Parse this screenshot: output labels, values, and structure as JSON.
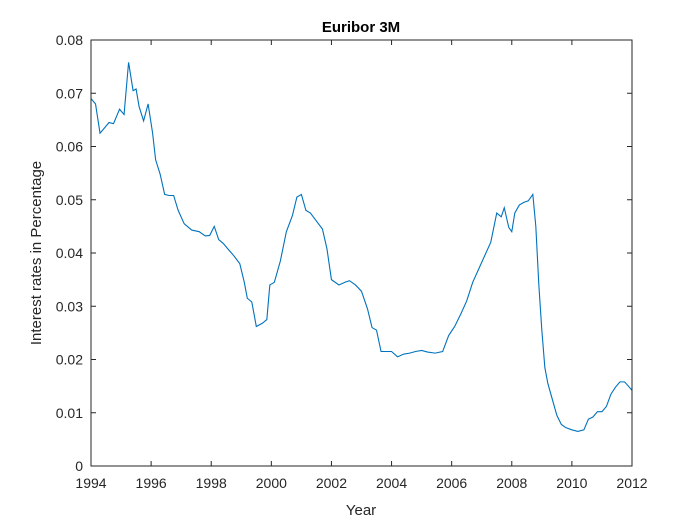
{
  "colors": {
    "line": "#0072BD",
    "axis": "#262626",
    "background": "#ffffff"
  },
  "chart_data": {
    "type": "line",
    "title": "Euribor 3M",
    "xlabel": "Year",
    "ylabel": "Interest rates in Percentage",
    "xlim": [
      1994,
      2012
    ],
    "ylim": [
      0,
      0.08
    ],
    "xticks": [
      "1994",
      "1996",
      "1998",
      "2000",
      "2002",
      "2004",
      "2006",
      "2008",
      "2010",
      "2012"
    ],
    "yticks": [
      "0",
      "0.01",
      "0.02",
      "0.03",
      "0.04",
      "0.05",
      "0.06",
      "0.07",
      "0.08"
    ],
    "grid": false,
    "box": true,
    "series": [
      {
        "x": [
          1994.0,
          1994.15,
          1994.3,
          1994.45,
          1994.6,
          1994.75,
          1994.95,
          1995.1,
          1995.25,
          1995.4,
          1995.5,
          1995.6,
          1995.75,
          1995.9,
          1996.05,
          1996.15,
          1996.3,
          1996.45,
          1996.6,
          1996.75,
          1996.9,
          1997.1,
          1997.35,
          1997.6,
          1997.8,
          1997.95,
          1998.1,
          1998.25,
          1998.4,
          1998.55,
          1998.75,
          1998.95,
          1999.1,
          1999.2,
          1999.35,
          1999.5,
          1999.7,
          1999.85,
          1999.95,
          2000.1,
          2000.3,
          2000.5,
          2000.7,
          2000.85,
          2001.0,
          2001.15,
          2001.3,
          2001.5,
          2001.7,
          2001.85,
          2002.0,
          2002.25,
          2002.45,
          2002.6,
          2002.8,
          2003.0,
          2003.2,
          2003.35,
          2003.5,
          2003.65,
          2003.8,
          2004.0,
          2004.2,
          2004.4,
          2004.6,
          2004.8,
          2005.0,
          2005.2,
          2005.45,
          2005.7,
          2005.9,
          2006.1,
          2006.3,
          2006.5,
          2006.7,
          2006.9,
          2007.1,
          2007.3,
          2007.5,
          2007.65,
          2007.75,
          2007.9,
          2008.0,
          2008.1,
          2008.25,
          2008.4,
          2008.55,
          2008.7,
          2008.8,
          2008.9,
          2009.0,
          2009.1,
          2009.2,
          2009.35,
          2009.5,
          2009.65,
          2009.8,
          2010.0,
          2010.2,
          2010.4,
          2010.55,
          2010.7,
          2010.85,
          2011.0,
          2011.15,
          2011.3,
          2011.45,
          2011.6,
          2011.75,
          2011.85,
          2012.0
        ],
        "y": [
          0.069,
          0.068,
          0.0625,
          0.0635,
          0.0645,
          0.0643,
          0.067,
          0.066,
          0.0758,
          0.0705,
          0.0708,
          0.0675,
          0.0648,
          0.068,
          0.0625,
          0.0575,
          0.0548,
          0.051,
          0.0508,
          0.0508,
          0.048,
          0.0455,
          0.0443,
          0.044,
          0.0432,
          0.0433,
          0.045,
          0.0425,
          0.0418,
          0.0408,
          0.0395,
          0.038,
          0.0345,
          0.0315,
          0.0308,
          0.0262,
          0.0268,
          0.0275,
          0.034,
          0.0345,
          0.0385,
          0.044,
          0.047,
          0.0505,
          0.051,
          0.048,
          0.0475,
          0.046,
          0.0445,
          0.0408,
          0.035,
          0.034,
          0.0345,
          0.0348,
          0.034,
          0.0328,
          0.0295,
          0.026,
          0.0255,
          0.0215,
          0.0215,
          0.0215,
          0.0205,
          0.021,
          0.0212,
          0.0215,
          0.0217,
          0.0214,
          0.0212,
          0.0215,
          0.0245,
          0.0262,
          0.0285,
          0.031,
          0.0345,
          0.037,
          0.0395,
          0.042,
          0.0475,
          0.0468,
          0.0485,
          0.0448,
          0.044,
          0.0475,
          0.049,
          0.0495,
          0.0498,
          0.051,
          0.045,
          0.034,
          0.0255,
          0.0185,
          0.0155,
          0.0125,
          0.0095,
          0.0078,
          0.0072,
          0.0068,
          0.0065,
          0.0068,
          0.0088,
          0.0092,
          0.0102,
          0.0102,
          0.0112,
          0.0135,
          0.0148,
          0.0158,
          0.0158,
          0.0152,
          0.0142
        ]
      }
    ]
  }
}
